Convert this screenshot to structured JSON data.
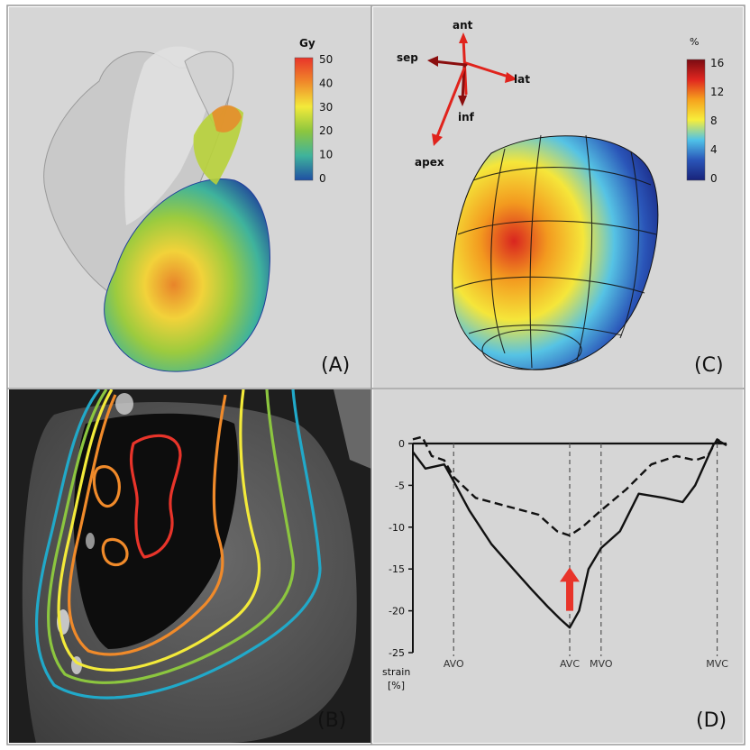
{
  "panels": {
    "a": {
      "label": "(A)"
    },
    "b": {
      "label": "(B)"
    },
    "c": {
      "label": "(C)"
    },
    "d": {
      "label": "(D)"
    }
  },
  "colorbar_a": {
    "unit": "Gy",
    "ticks": [
      "50",
      "40",
      "30",
      "20",
      "10",
      "0"
    ],
    "colors": [
      "#e8342a",
      "#f08a2a",
      "#f3ea3a",
      "#8cc63f",
      "#3fb39c",
      "#1f4fa3"
    ]
  },
  "colorbar_c": {
    "unit": "%",
    "ticks": [
      "16",
      "12",
      "8",
      "4",
      "0"
    ],
    "colors": [
      "#7a0b12",
      "#e0261f",
      "#f6a21d",
      "#f7ee3b",
      "#4fc2e8",
      "#2a55b8",
      "#18237a"
    ]
  },
  "axes_c": {
    "ant": "ant",
    "sep": "sep",
    "lat": "lat",
    "inf": "inf",
    "apex": "apex"
  },
  "ct_isodose_colors": [
    "#e8342a",
    "#f08a2a",
    "#f3ea3a",
    "#8cc63f",
    "#21a9c9"
  ],
  "chart_data": {
    "type": "line",
    "xlabel": "",
    "ylabel": "strain [%]",
    "ylabel_lines": [
      "strain",
      "[%]"
    ],
    "ylim": [
      -25,
      0
    ],
    "yticks": [
      0,
      -5,
      -10,
      -15,
      -20,
      -25
    ],
    "xlim": [
      0,
      1
    ],
    "events": [
      {
        "label": "AVO",
        "x": 0.13
      },
      {
        "label": "AVC",
        "x": 0.5
      },
      {
        "label": "MVO",
        "x": 0.6
      },
      {
        "label": "MVC",
        "x": 0.97
      }
    ],
    "series": [
      {
        "style": "solid",
        "x": [
          0.0,
          0.04,
          0.1,
          0.13,
          0.18,
          0.25,
          0.32,
          0.38,
          0.43,
          0.47,
          0.5,
          0.53,
          0.56,
          0.6,
          0.66,
          0.72,
          0.8,
          0.86,
          0.9,
          0.93,
          0.96,
          0.98,
          1.0
        ],
        "y": [
          -1.0,
          -3.0,
          -2.5,
          -4.5,
          -8.0,
          -12.0,
          -15.0,
          -17.5,
          -19.5,
          -21.0,
          -22.0,
          -20.0,
          -15.0,
          -12.5,
          -10.5,
          -6.0,
          -6.5,
          -7.0,
          -5.0,
          -2.5,
          0.0,
          0.2,
          -0.2
        ]
      },
      {
        "style": "dashed",
        "x": [
          0.0,
          0.03,
          0.06,
          0.1,
          0.13,
          0.2,
          0.3,
          0.4,
          0.46,
          0.5,
          0.54,
          0.6,
          0.68,
          0.76,
          0.84,
          0.9,
          0.94,
          0.97,
          1.0
        ],
        "y": [
          0.5,
          0.8,
          -1.5,
          -2.0,
          -4.0,
          -6.5,
          -7.5,
          -8.5,
          -10.5,
          -11.0,
          -10.0,
          -8.0,
          -5.5,
          -2.5,
          -1.5,
          -2.0,
          -1.5,
          0.5,
          -0.2
        ]
      }
    ],
    "annotations": [
      {
        "type": "arrow",
        "color": "#e8342a",
        "x": 0.5,
        "y_from": -20.0,
        "y_to": -14.8
      }
    ]
  }
}
